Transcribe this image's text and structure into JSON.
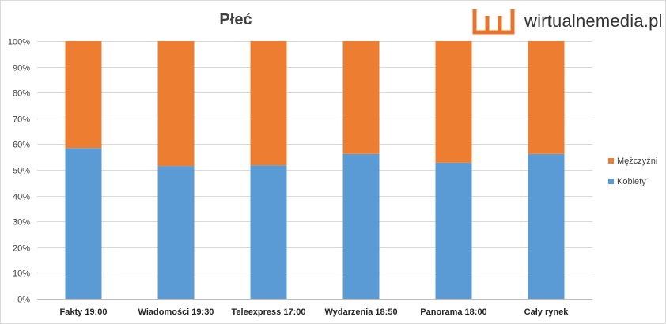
{
  "chart_data": {
    "type": "bar",
    "stacked": true,
    "title": "Płeć",
    "categories": [
      "Fakty 19:00",
      "Wiadomości 19:30",
      "Teleexpress 17:00",
      "Wydarzenia 18:50",
      "Panorama 18:00",
      "Cały rynek"
    ],
    "series": [
      {
        "name": "Kobiety",
        "color": "#5b9bd5",
        "values": [
          58.5,
          51.5,
          51.8,
          56.2,
          52.8,
          56.2
        ]
      },
      {
        "name": "Mężczyźni",
        "color": "#ed7d31",
        "values": [
          41.5,
          48.5,
          48.2,
          43.8,
          47.2,
          43.8
        ]
      }
    ],
    "ylim": [
      0,
      100
    ],
    "yticks": [
      "0%",
      "10%",
      "20%",
      "30%",
      "40%",
      "50%",
      "60%",
      "70%",
      "80%",
      "90%",
      "100%"
    ],
    "grid": true,
    "legend_position": "right",
    "legend_order": [
      "Mężczyźni",
      "Kobiety"
    ]
  },
  "logo": {
    "text": "wirtualnemedia.pl",
    "icon": "wm-logo-icon",
    "color": "#e8732a"
  }
}
